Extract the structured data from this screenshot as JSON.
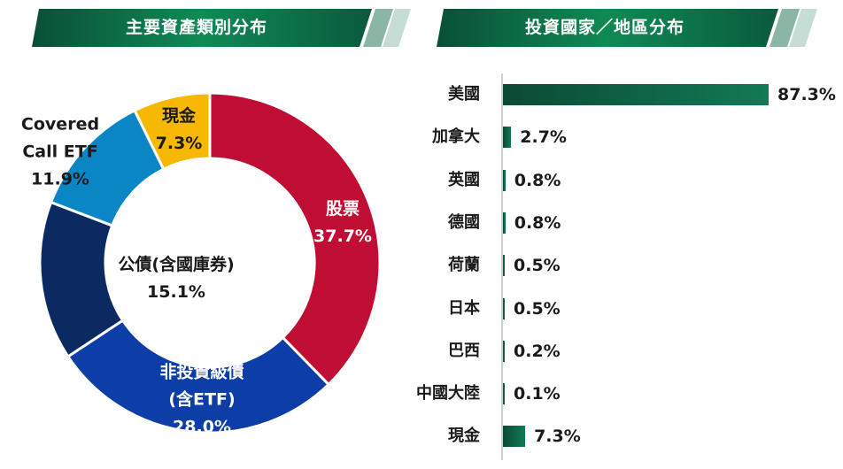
{
  "left_title": "主要資產類別分布",
  "right_title": "投資國家／地區分布",
  "colors": {
    "banner_dark": "#0a4f36",
    "banner_mid": "#0f8a55",
    "banner_stripe1": "#8bb5a5",
    "banner_stripe2": "#c5ddd4",
    "bar": "#0f6b4a"
  },
  "chart_data": [
    {
      "type": "pie",
      "title": "主要資產類別分布",
      "donut": true,
      "slices": [
        {
          "label": "股票",
          "value": 37.7,
          "value_text": "37.7%",
          "color": "#c00d33"
        },
        {
          "label": "非投資級債\n(含ETF)",
          "value": 28.0,
          "value_text": "28.0%",
          "color": "#0d3ea8"
        },
        {
          "label": "公債(含國庫券)",
          "value": 15.1,
          "value_text": "15.1%",
          "color": "#0c2a62"
        },
        {
          "label": "Covered\nCall ETF",
          "value": 11.9,
          "value_text": "11.9%",
          "color": "#0a86c4"
        },
        {
          "label": "現金",
          "value": 7.3,
          "value_text": "7.3%",
          "color": "#f6b800"
        }
      ]
    },
    {
      "type": "bar",
      "orientation": "horizontal",
      "title": "投資國家／地區分布",
      "categories": [
        "美國",
        "加拿大",
        "英國",
        "德國",
        "荷蘭",
        "日本",
        "巴西",
        "中國大陸",
        "現金"
      ],
      "values": [
        87.3,
        2.7,
        0.8,
        0.8,
        0.5,
        0.5,
        0.2,
        0.1,
        7.3
      ],
      "value_labels": [
        "87.3%",
        "2.7%",
        "0.8%",
        "0.8%",
        "0.5%",
        "0.5%",
        "0.2%",
        "0.1%",
        "7.3%"
      ],
      "xlim": [
        0,
        87.3
      ]
    }
  ]
}
